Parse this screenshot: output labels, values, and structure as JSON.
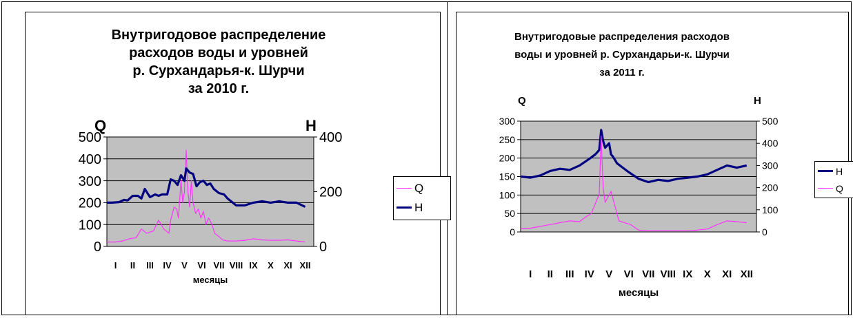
{
  "chart_data": [
    {
      "type": "line",
      "title_lines": [
        "Внутригодовое распределение",
        "расходов воды и уровней",
        "р. Сурхандарья-к. Шурчи",
        "за 2010 г."
      ],
      "ylabel_left": "Q",
      "ylabel_right": "H",
      "xlabel": "месяцы",
      "categories": [
        "I",
        "II",
        "III",
        "IV",
        "V",
        "VI",
        "VII",
        "VIII",
        "IX",
        "X",
        "XI",
        "XII"
      ],
      "ylim_left": [
        0,
        500
      ],
      "yticks_left": [
        0,
        100,
        200,
        300,
        400,
        500
      ],
      "ylim_right": [
        0,
        400
      ],
      "yticks_right": [
        0,
        200,
        400
      ],
      "grid": true,
      "legend_position": "right",
      "series": [
        {
          "name": "Q",
          "axis": "left",
          "color": "#ff33ff",
          "x": [
            0.0,
            0.5,
            0.9,
            1.3,
            1.7,
            2.0,
            2.3,
            2.7,
            3.0,
            3.3,
            3.6,
            3.7,
            3.9,
            4.05,
            4.15,
            4.3,
            4.4,
            4.5,
            4.6,
            4.7,
            4.8,
            4.9,
            5.0,
            5.15,
            5.3,
            5.45,
            5.6,
            5.75,
            5.9,
            6.1,
            6.25,
            6.5,
            6.7,
            7.0,
            7.5,
            8.0,
            8.5,
            9.0,
            9.5,
            10.0,
            10.5,
            11.0,
            11.5
          ],
          "values": [
            20,
            20,
            25,
            35,
            40,
            80,
            60,
            70,
            120,
            80,
            60,
            120,
            180,
            170,
            130,
            300,
            200,
            250,
            440,
            250,
            180,
            300,
            200,
            150,
            170,
            130,
            160,
            100,
            130,
            100,
            60,
            45,
            30,
            25,
            25,
            28,
            35,
            30,
            28,
            28,
            30,
            25,
            20
          ]
        },
        {
          "name": "H",
          "axis": "right",
          "color": "#000080",
          "x": [
            0.0,
            0.3,
            0.7,
            1.0,
            1.2,
            1.5,
            1.8,
            2.0,
            2.2,
            2.5,
            2.8,
            3.0,
            3.2,
            3.5,
            3.7,
            3.9,
            4.1,
            4.3,
            4.5,
            4.6,
            4.8,
            5.0,
            5.2,
            5.4,
            5.6,
            5.8,
            6.0,
            6.2,
            6.5,
            6.8,
            7.0,
            7.5,
            8.0,
            8.5,
            9.0,
            9.5,
            10.0,
            10.5,
            11.0,
            11.5
          ],
          "values": [
            160,
            160,
            162,
            170,
            168,
            185,
            185,
            175,
            210,
            180,
            190,
            185,
            190,
            190,
            245,
            240,
            225,
            260,
            240,
            285,
            270,
            265,
            220,
            235,
            240,
            225,
            230,
            210,
            195,
            190,
            175,
            150,
            150,
            160,
            165,
            160,
            165,
            160,
            160,
            145
          ]
        }
      ]
    },
    {
      "type": "line",
      "title_lines": [
        "Внутригодовые распределения расходов",
        "воды и уровней р. Сурхандарьи-к. Шурчи",
        "за 2011 г."
      ],
      "ylabel_left": "Q",
      "ylabel_right": "H",
      "xlabel": "месяцы",
      "categories": [
        "I",
        "II",
        "III",
        "IV",
        "V",
        "VI",
        "VII",
        "VIII",
        "IX",
        "X",
        "XI",
        "XII"
      ],
      "ylim_left": [
        0,
        300
      ],
      "yticks_left": [
        0,
        50,
        100,
        150,
        200,
        250,
        300
      ],
      "ylim_right": [
        0,
        500
      ],
      "yticks_right": [
        0,
        100,
        200,
        300,
        400,
        500
      ],
      "grid": true,
      "legend_position": "right",
      "series": [
        {
          "name": "H",
          "axis": "right",
          "color": "#000080",
          "x": [
            0.0,
            0.5,
            1.0,
            1.5,
            2.0,
            2.5,
            3.0,
            3.5,
            3.8,
            4.0,
            4.1,
            4.2,
            4.3,
            4.5,
            4.6,
            4.7,
            4.9,
            5.2,
            5.5,
            6.0,
            6.5,
            7.0,
            7.5,
            8.0,
            8.5,
            9.0,
            9.5,
            10.0,
            10.5,
            11.0,
            11.5
          ],
          "values": [
            250,
            245,
            255,
            275,
            285,
            280,
            300,
            330,
            350,
            370,
            460,
            410,
            380,
            400,
            350,
            340,
            310,
            290,
            270,
            240,
            225,
            235,
            230,
            240,
            245,
            250,
            260,
            280,
            300,
            290,
            300
          ]
        },
        {
          "name": "Q",
          "axis": "left",
          "color": "#ff33ff",
          "x": [
            0.0,
            0.5,
            1.0,
            1.5,
            2.0,
            2.5,
            3.0,
            3.3,
            3.6,
            3.9,
            4.0,
            4.1,
            4.2,
            4.3,
            4.4,
            4.6,
            4.8,
            5.0,
            5.3,
            5.6,
            6.0,
            6.5,
            7.0,
            7.5,
            8.0,
            8.5,
            9.0,
            9.5,
            10.0,
            10.5,
            11.0,
            11.5
          ],
          "values": [
            10,
            10,
            15,
            20,
            25,
            30,
            28,
            40,
            50,
            90,
            100,
            260,
            120,
            80,
            90,
            110,
            70,
            30,
            25,
            20,
            5,
            3,
            3,
            3,
            3,
            3,
            5,
            8,
            20,
            30,
            28,
            25
          ]
        }
      ]
    }
  ]
}
